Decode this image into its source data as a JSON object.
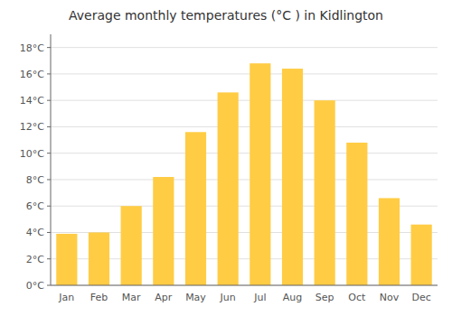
{
  "chart_data": {
    "type": "bar",
    "title": "Average monthly temperatures (°C ) in Kidlington",
    "categories": [
      "Jan",
      "Feb",
      "Mar",
      "Apr",
      "May",
      "Jun",
      "Jul",
      "Aug",
      "Sep",
      "Oct",
      "Nov",
      "Dec"
    ],
    "values": [
      3.9,
      4.0,
      6.0,
      8.2,
      11.6,
      14.6,
      16.8,
      16.4,
      14.0,
      10.8,
      6.6,
      4.6
    ],
    "color": "#FFCC44",
    "ylim": [
      0,
      19
    ],
    "yticks": [
      {
        "value": 0,
        "label": "0°C"
      },
      {
        "value": 2,
        "label": "2°C"
      },
      {
        "value": 4,
        "label": "4°C"
      },
      {
        "value": 6,
        "label": "6°C"
      },
      {
        "value": 8,
        "label": "8°C"
      },
      {
        "value": 10,
        "label": "10°C"
      },
      {
        "value": 12,
        "label": "12°C"
      },
      {
        "value": 14,
        "label": "14°C"
      },
      {
        "value": 16,
        "label": "16°C"
      },
      {
        "value": 18,
        "label": "18°C"
      }
    ],
    "grid": true
  }
}
